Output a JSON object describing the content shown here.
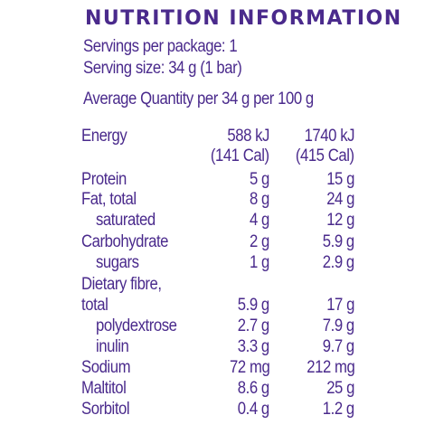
{
  "panel": {
    "title": "NUTRITION INFORMATION",
    "servings_per_package": "Servings per package: 1",
    "serving_size": "Serving size: 34 g (1 bar)",
    "header": "Average Quantity per 34 g   per 100 g"
  },
  "rows": [
    {
      "name": "Energy",
      "per_serving": "588 kJ",
      "per_100g": "1740 kJ"
    },
    {
      "name": "",
      "per_serving": "(141 Cal)",
      "per_100g": "(415 Cal)"
    },
    {
      "name": "Protein",
      "per_serving": "5 g",
      "per_100g": "15 g"
    },
    {
      "name": "Fat, total",
      "per_serving": "8 g",
      "per_100g": "24 g"
    },
    {
      "name": "saturated",
      "per_serving": "4 g",
      "per_100g": "12 g"
    },
    {
      "name": "Carbohydrate",
      "per_serving": "2 g",
      "per_100g": "5.9 g"
    },
    {
      "name": "sugars",
      "per_serving": "1 g",
      "per_100g": "2.9 g"
    },
    {
      "name": "Dietary fibre,",
      "per_serving": "",
      "per_100g": ""
    },
    {
      "name": "total",
      "per_serving": "5.9 g",
      "per_100g": "17 g"
    },
    {
      "name": "polydextrose",
      "per_serving": "2.7 g",
      "per_100g": "7.9 g"
    },
    {
      "name": "inulin",
      "per_serving": "3.3 g",
      "per_100g": "9.7 g"
    },
    {
      "name": "Sodium",
      "per_serving": "72 mg",
      "per_100g": "212 mg"
    },
    {
      "name": "Maltitol",
      "per_serving": "8.6 g",
      "per_100g": "25 g"
    },
    {
      "name": "Sorbitol",
      "per_serving": "0.4 g",
      "per_100g": "1.2 g"
    }
  ],
  "colors": {
    "text": "#4a2a8c",
    "background": "#ffffff"
  }
}
